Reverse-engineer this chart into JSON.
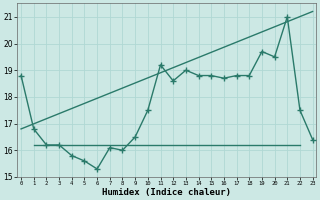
{
  "x": [
    0,
    1,
    2,
    3,
    4,
    5,
    6,
    7,
    8,
    9,
    10,
    11,
    12,
    13,
    14,
    15,
    16,
    17,
    18,
    19,
    20,
    21,
    22,
    23
  ],
  "line1": [
    18.8,
    16.8,
    16.2,
    16.2,
    15.8,
    15.6,
    15.3,
    16.1,
    16.0,
    16.5,
    17.5,
    19.2,
    18.6,
    19.0,
    18.8,
    18.8,
    18.7,
    18.8,
    18.8,
    19.7,
    19.5,
    21.0,
    17.5,
    16.4
  ],
  "line2_x": [
    0,
    23
  ],
  "line2_y": [
    16.8,
    21.2
  ],
  "line3_x": [
    1,
    22
  ],
  "line3_y": [
    16.2,
    16.2
  ],
  "color": "#2a7a6a",
  "bg_color": "#cce8e4",
  "grid_color": "#b0d8d4",
  "ylim": [
    15.0,
    21.5
  ],
  "xlim": [
    -0.3,
    23.3
  ],
  "yticks": [
    15,
    16,
    17,
    18,
    19,
    20,
    21
  ],
  "xticks": [
    0,
    1,
    2,
    3,
    4,
    5,
    6,
    7,
    8,
    9,
    10,
    11,
    12,
    13,
    14,
    15,
    16,
    17,
    18,
    19,
    20,
    21,
    22,
    23
  ],
  "xlabel": "Humidex (Indice chaleur)",
  "marker": "+",
  "markersize": 4,
  "markeredgewidth": 1.0,
  "linewidth": 1.0
}
